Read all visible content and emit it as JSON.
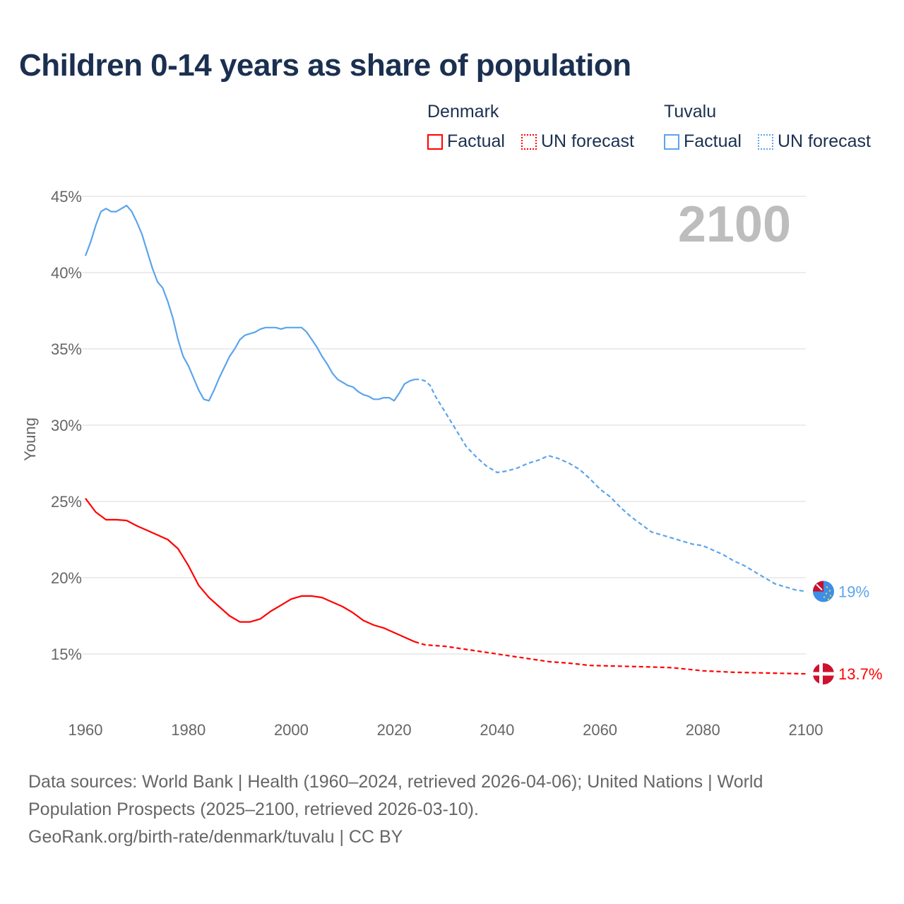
{
  "chart_data": {
    "type": "line",
    "title": "Children 0-14 years as share of population",
    "ylabel": "Young",
    "xlabel": "",
    "xlim": [
      1960,
      2100
    ],
    "ylim": [
      12,
      45
    ],
    "x_ticks": [
      "1960",
      "1980",
      "2000",
      "2020",
      "2040",
      "2060",
      "2080",
      "2100"
    ],
    "y_ticks": [
      "15%",
      "20%",
      "25%",
      "30%",
      "35%",
      "40%",
      "45%"
    ],
    "year_label": "2100",
    "grid": true,
    "legend": {
      "placement": "top-right",
      "groups": [
        {
          "name": "Denmark",
          "factual": "Factual",
          "forecast": "UN forecast"
        },
        {
          "name": "Tuvalu",
          "factual": "Factual",
          "forecast": "UN forecast"
        }
      ]
    },
    "series": [
      {
        "name": "Tuvalu",
        "color": "#5ba4ec",
        "end_label": "19%",
        "factual_end": 2024,
        "x": [
          1960,
          1961,
          1962,
          1963,
          1964,
          1965,
          1966,
          1967,
          1968,
          1969,
          1970,
          1971,
          1972,
          1973,
          1974,
          1975,
          1976,
          1977,
          1978,
          1979,
          1980,
          1981,
          1982,
          1983,
          1984,
          1985,
          1986,
          1987,
          1988,
          1989,
          1990,
          1991,
          1992,
          1993,
          1994,
          1995,
          1996,
          1997,
          1998,
          1999,
          2000,
          2001,
          2002,
          2003,
          2004,
          2005,
          2006,
          2007,
          2008,
          2009,
          2010,
          2011,
          2012,
          2013,
          2014,
          2015,
          2016,
          2017,
          2018,
          2019,
          2020,
          2021,
          2022,
          2023,
          2024,
          2025,
          2026,
          2027,
          2028,
          2030,
          2032,
          2034,
          2036,
          2038,
          2039,
          2040,
          2042,
          2044,
          2046,
          2048,
          2050,
          2052,
          2054,
          2056,
          2058,
          2060,
          2062,
          2064,
          2066,
          2068,
          2070,
          2072,
          2074,
          2076,
          2078,
          2080,
          2082,
          2084,
          2086,
          2088,
          2090,
          2092,
          2094,
          2096,
          2098,
          2100
        ],
        "y": [
          41.1,
          42.0,
          43.1,
          44.0,
          44.2,
          44.0,
          44.0,
          44.2,
          44.4,
          44.0,
          43.3,
          42.5,
          41.4,
          40.3,
          39.4,
          39.0,
          38.1,
          37.0,
          35.6,
          34.5,
          33.9,
          33.1,
          32.3,
          31.7,
          31.6,
          32.3,
          33.1,
          33.8,
          34.5,
          35.0,
          35.6,
          35.9,
          36.0,
          36.1,
          36.3,
          36.4,
          36.4,
          36.4,
          36.3,
          36.4,
          36.4,
          36.4,
          36.4,
          36.1,
          35.6,
          35.1,
          34.5,
          34.0,
          33.4,
          33.0,
          32.8,
          32.6,
          32.5,
          32.2,
          32.0,
          31.9,
          31.7,
          31.7,
          31.8,
          31.8,
          31.6,
          32.1,
          32.7,
          32.9,
          33.0,
          33.0,
          32.9,
          32.6,
          31.9,
          30.8,
          29.7,
          28.6,
          27.9,
          27.3,
          27.1,
          26.9,
          27.0,
          27.2,
          27.5,
          27.7,
          28.0,
          27.8,
          27.5,
          27.1,
          26.5,
          25.8,
          25.3,
          24.6,
          24.0,
          23.5,
          23.0,
          22.8,
          22.6,
          22.4,
          22.2,
          22.1,
          21.8,
          21.5,
          21.1,
          20.8,
          20.4,
          20.0,
          19.6,
          19.4,
          19.2,
          19.1
        ]
      },
      {
        "name": "Denmark",
        "color": "#ff0000",
        "end_label": "13.7%",
        "factual_end": 2024,
        "x": [
          1960,
          1962,
          1964,
          1966,
          1968,
          1970,
          1972,
          1974,
          1976,
          1978,
          1980,
          1982,
          1984,
          1986,
          1988,
          1990,
          1992,
          1994,
          1996,
          1998,
          2000,
          2002,
          2004,
          2006,
          2008,
          2010,
          2012,
          2014,
          2016,
          2018,
          2020,
          2022,
          2024,
          2026,
          2030,
          2034,
          2038,
          2042,
          2046,
          2050,
          2054,
          2058,
          2064,
          2070,
          2074,
          2080,
          2086,
          2100
        ],
        "y": [
          25.2,
          24.3,
          23.8,
          23.8,
          23.75,
          23.4,
          23.1,
          22.8,
          22.5,
          21.9,
          20.8,
          19.5,
          18.7,
          18.1,
          17.5,
          17.1,
          17.1,
          17.3,
          17.8,
          18.2,
          18.6,
          18.8,
          18.8,
          18.7,
          18.4,
          18.1,
          17.7,
          17.2,
          16.9,
          16.7,
          16.4,
          16.1,
          15.8,
          15.6,
          15.5,
          15.3,
          15.1,
          14.9,
          14.7,
          14.5,
          14.4,
          14.25,
          14.2,
          14.15,
          14.1,
          13.9,
          13.8,
          13.7
        ]
      }
    ]
  },
  "footer": {
    "line1": "Data sources: World Bank | Health (1960–2024, retrieved 2026-04-06); United Nations | World",
    "line2": "Population Prospects (2025–2100, retrieved 2026-03-10).",
    "line3": "GeoRank.org/birth-rate/denmark/tuvalu | CC BY"
  }
}
